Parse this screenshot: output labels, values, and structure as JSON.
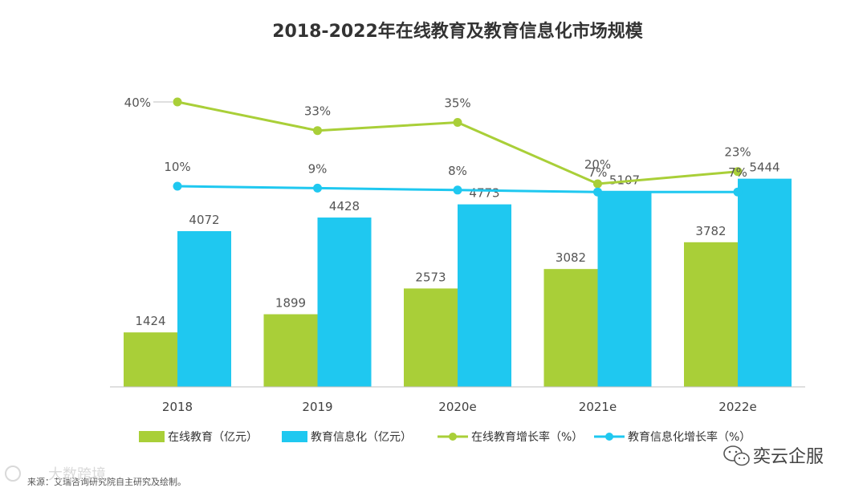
{
  "chart_data": {
    "type": "bar",
    "title": "2018-2022年在线教育及教育信息化市场规模",
    "categories": [
      "2018",
      "2019",
      "2020e",
      "2021e",
      "2022e"
    ],
    "series": [
      {
        "name": "在线教育（亿元）",
        "kind": "bar",
        "color": "#a9cf38",
        "values": [
          1424,
          1899,
          2573,
          3082,
          3782
        ]
      },
      {
        "name": "教育信息化（亿元）",
        "kind": "bar",
        "color": "#1fc8f0",
        "values": [
          4072,
          4428,
          4773,
          5107,
          5444
        ]
      },
      {
        "name": "在线教育增长率（%）",
        "kind": "line",
        "color": "#a9cf38",
        "values": [
          40,
          33,
          35,
          20,
          23
        ],
        "labels": [
          "40%",
          "33%",
          "35%",
          "20%",
          "23%"
        ]
      },
      {
        "name": "教育信息化增长率（%）",
        "kind": "line",
        "color": "#1fc8f0",
        "values": [
          10,
          9,
          8,
          7,
          7
        ],
        "labels": [
          "10%",
          "9%",
          "8%",
          "7%",
          "7%"
        ]
      }
    ],
    "xlabel": "",
    "ylabel": "",
    "grid": false,
    "legend_position": "bottom"
  },
  "source": "来源：艾瑞咨询研究院自主研究及绘制。",
  "watermark": "奕云企服",
  "watermark_left": "大数跨境"
}
